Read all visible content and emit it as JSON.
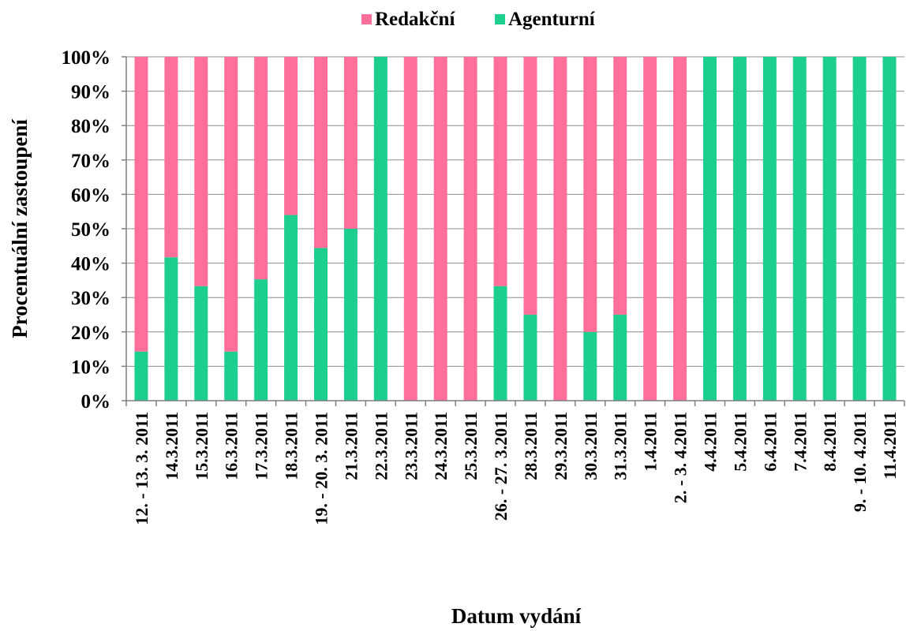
{
  "chart_data": {
    "type": "bar",
    "stacked": true,
    "percent_stacked": true,
    "title": "",
    "xlabel": "Datum vydání",
    "ylabel": "Procentuální zastoupení",
    "ylim": [
      0,
      100
    ],
    "y_ticks": [
      "0%",
      "10%",
      "20%",
      "30%",
      "40%",
      "50%",
      "60%",
      "70%",
      "80%",
      "90%",
      "100%"
    ],
    "grid": true,
    "legend_position": "top-center",
    "categories": [
      "12. - 13. 3. 2011",
      "14.3.2011",
      "15.3.2011",
      "16.3.2011",
      "17.3.2011",
      "18.3.2011",
      "19. - 20. 3. 2011",
      "21.3.2011",
      "22.3.2011",
      "23.3.2011",
      "24.3.2011",
      "25.3.2011",
      "26. - 27. 3.2011",
      "28.3.2011",
      "29.3.2011",
      "30.3.2011",
      "31.3.2011",
      "1.4.2011",
      "2. - 3. 4.2011",
      "4.4.2011",
      "5.4.2011",
      "6.4.2011",
      "7.4.2011",
      "8.4.2011",
      "9. - 10. 4.2011",
      "11.4.2011"
    ],
    "series": [
      {
        "name": "Agenturní",
        "color": "#1ccf8f",
        "values": [
          14.3,
          41.7,
          33.3,
          14.3,
          35.3,
          54,
          44.4,
          50,
          100,
          0,
          0,
          0,
          33.3,
          25,
          0,
          20,
          25,
          0,
          0,
          100,
          100,
          100,
          100,
          100,
          100,
          100
        ]
      },
      {
        "name": "Redakční",
        "color": "#ff6f9a",
        "values": [
          85.7,
          58.3,
          66.7,
          85.7,
          64.7,
          46,
          55.6,
          50,
          0,
          100,
          100,
          100,
          66.7,
          75,
          100,
          80,
          75,
          100,
          100,
          0,
          0,
          0,
          0,
          0,
          0,
          0
        ]
      }
    ],
    "legend_order": [
      "Redakční",
      "Agenturní"
    ]
  }
}
